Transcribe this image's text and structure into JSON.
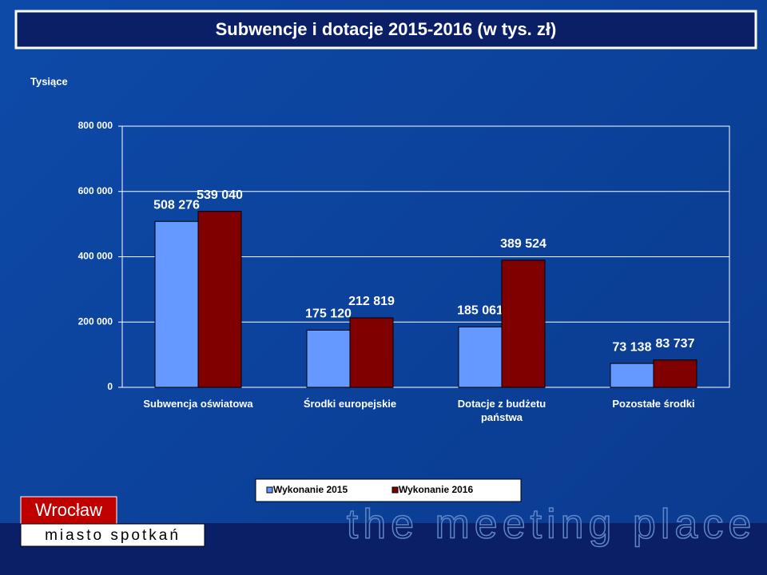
{
  "chart_data": {
    "type": "bar",
    "title": "Subwencje i dotacje 2015-2016 (w tys. zł)",
    "y_label": "Tysiące",
    "categories": [
      "Subwencja oświatowa",
      "Środki europejskie",
      "Dotacje z budżetu państwa",
      "Pozostałe środki"
    ],
    "series": [
      {
        "name": "Wykonanie 2015",
        "color": "#6699ff",
        "values": [
          508276,
          175120,
          185061,
          73138
        ],
        "value_labels": [
          "508 276",
          "175 120",
          "185 061",
          "73 138"
        ]
      },
      {
        "name": "Wykonanie 2016",
        "color": "#800000",
        "values": [
          539040,
          212819,
          389524,
          83737
        ],
        "value_labels": [
          "539 040",
          "212 819",
          "389 524",
          "83 737"
        ]
      }
    ],
    "ylim": [
      0,
      800000
    ],
    "yticks": [
      0,
      {
        "value": 200000,
        "label": "200 000"
      },
      {
        "value": 400000,
        "label": "400 000"
      },
      {
        "value": 600000,
        "label": "600 000"
      },
      {
        "value": 800000,
        "label": "800 000"
      }
    ],
    "grid": true,
    "legend": "bottom"
  },
  "logo": {
    "name": "Wrocław",
    "tagline": "miasto spotkań",
    "slogan": "the meeting place"
  }
}
